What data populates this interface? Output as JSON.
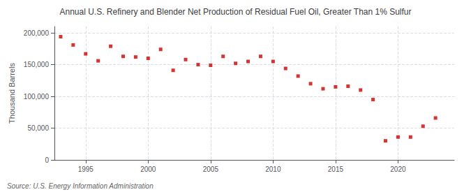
{
  "chart_data": {
    "type": "scatter",
    "title": "Annual U.S. Refinery and Blender Net Production of Residual Fuel Oil, Greater Than 1% Sulfur",
    "ylabel": "Thousand Barrels",
    "annotations": [
      "Source: U.S. Energy Information Administration"
    ],
    "x": [
      1993,
      1994,
      1995,
      1996,
      1997,
      1998,
      1999,
      2000,
      2001,
      2002,
      2003,
      2004,
      2005,
      2006,
      2007,
      2008,
      2009,
      2010,
      2011,
      2012,
      2013,
      2014,
      2015,
      2016,
      2017,
      2018,
      2019,
      2020,
      2021,
      2022,
      2023
    ],
    "values": [
      194000,
      181000,
      167000,
      156000,
      179000,
      163000,
      162000,
      160000,
      174000,
      141000,
      158000,
      150000,
      149000,
      163000,
      152000,
      155000,
      163000,
      155000,
      144000,
      132000,
      120000,
      112000,
      115000,
      116000,
      110000,
      95000,
      30000,
      36000,
      36000,
      53000,
      66000
    ],
    "color": "#cc0000",
    "marker": "square",
    "xlim": [
      1992.5,
      2024.5
    ],
    "xticks": [
      1995,
      2000,
      2005,
      2010,
      2015,
      2020
    ],
    "ylim": [
      0,
      210000
    ],
    "yticks": [
      0,
      {
        "value": 50000,
        "label": "50,000"
      },
      {
        "value": 100000,
        "label": "100,000"
      },
      {
        "value": 150000,
        "label": "150,000"
      },
      {
        "value": 200000,
        "label": "200,000"
      }
    ],
    "grid": true
  }
}
